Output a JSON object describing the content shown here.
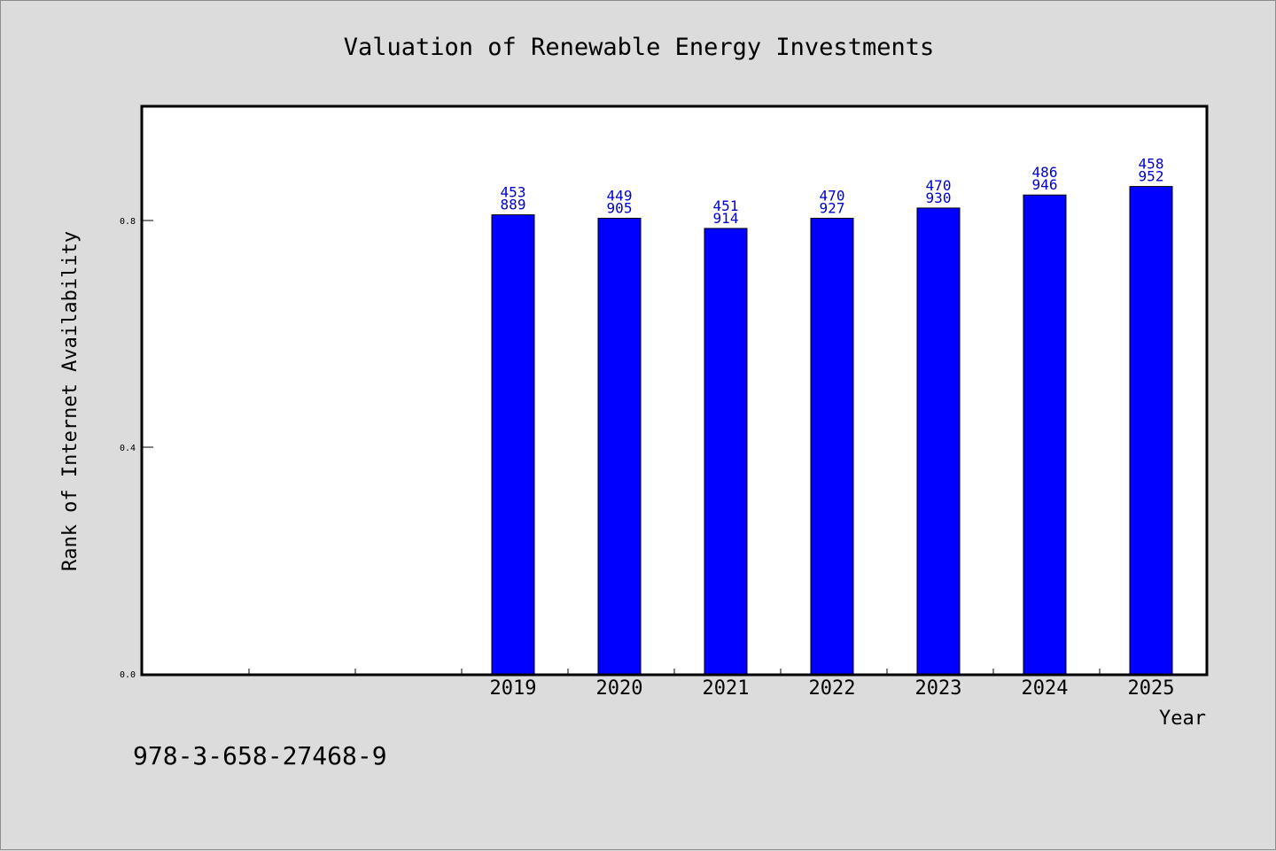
{
  "chart_data": {
    "type": "bar",
    "title": "Valuation of Renewable Energy Investments",
    "xlabel": "Year",
    "ylabel": "Rank of Internet Availability",
    "ylim": [
      0,
      1.0
    ],
    "yticks": [
      "0.0",
      "0.4",
      "0.8"
    ],
    "ytick_values": [
      0.0,
      0.4,
      0.8
    ],
    "xticks": [
      "2019",
      "2020",
      "2021",
      "2022",
      "2023",
      "2024",
      "2025"
    ],
    "x_slots": 10,
    "categories": [
      "2019",
      "2020",
      "2021",
      "2022",
      "2023",
      "2024",
      "2025"
    ],
    "values": [
      0.81,
      0.804,
      0.786,
      0.804,
      0.822,
      0.845,
      0.86
    ],
    "data_labels_top": [
      "453",
      "449",
      "451",
      "470",
      "470",
      "486",
      "458"
    ],
    "data_labels_bottom": [
      "889",
      "905",
      "914",
      "927",
      "930",
      "946",
      "952"
    ],
    "bar_color": "#0000ff",
    "label_color": "#0000cc",
    "grid": false,
    "legend": "none"
  },
  "footnote": "978-3-658-27468-9",
  "colors": {
    "background": "#dcdcdc",
    "plot_background": "#ffffff"
  }
}
